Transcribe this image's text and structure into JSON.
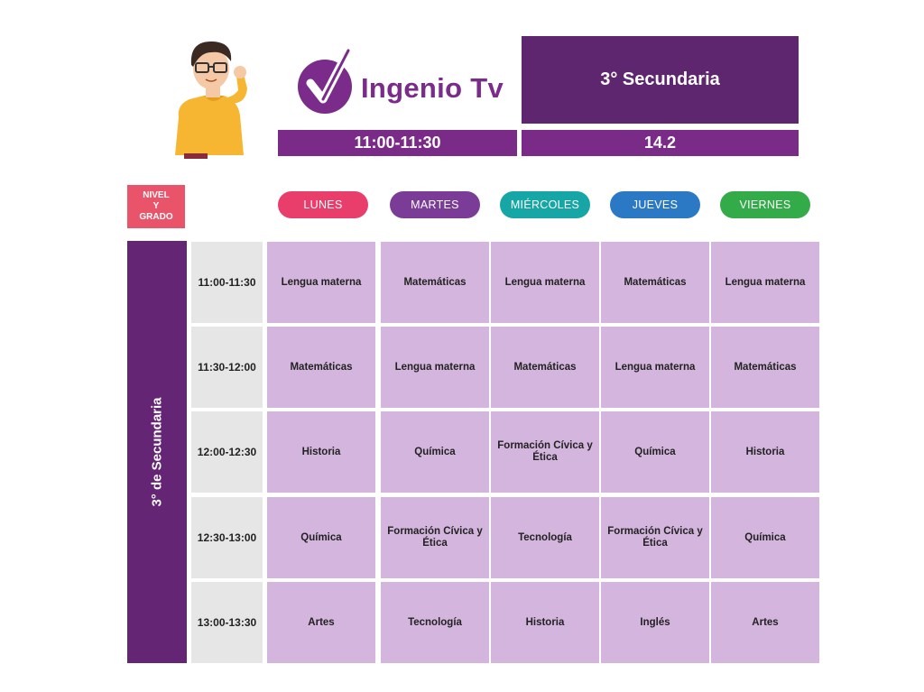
{
  "header": {
    "brand": "Ingenio Tv",
    "grade": "3° Secundaria",
    "time_slot": "11:00-11:30",
    "channel": "14.2",
    "mascot_icon": "boy-mascot-icon",
    "logo_icon": "checkmark-logo-icon"
  },
  "level_badge": {
    "line1": "NIVEL",
    "line2": "Y",
    "line3": "GRADO"
  },
  "days": [
    {
      "label": "LUNES",
      "color": "#e93d6b"
    },
    {
      "label": "MARTES",
      "color": "#7b3c98"
    },
    {
      "label": "MIÉRCOLES",
      "color": "#17a6a6"
    },
    {
      "label": "JUEVES",
      "color": "#2b78c5"
    },
    {
      "label": "VIERNES",
      "color": "#33ab49"
    }
  ],
  "side_label": "3° de Secundaria",
  "schedule": [
    {
      "time": "11:00-11:30",
      "subjects": [
        "Lengua materna",
        "Matemáticas",
        "Lengua materna",
        "Matemáticas",
        "Lengua materna"
      ]
    },
    {
      "time": "11:30-12:00",
      "subjects": [
        "Matemáticas",
        "Lengua materna",
        "Matemáticas",
        "Lengua materna",
        "Matemáticas"
      ]
    },
    {
      "time": "12:00-12:30",
      "subjects": [
        "Historia",
        "Química",
        "Formación Cívica y Ética",
        "Química",
        "Historia"
      ]
    },
    {
      "time": "12:30-13:00",
      "subjects": [
        "Química",
        "Formación Cívica y Ética",
        "Tecnología",
        "Formación Cívica y Ética",
        "Química"
      ]
    },
    {
      "time": "13:00-13:30",
      "subjects": [
        "Artes",
        "Tecnología",
        "Historia",
        "Inglés",
        "Artes"
      ]
    }
  ]
}
